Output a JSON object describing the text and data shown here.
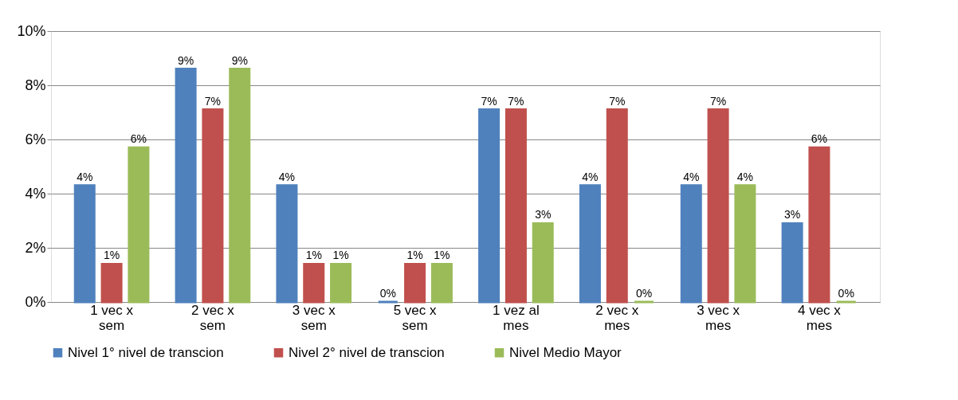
{
  "chart_data": {
    "type": "bar",
    "categories": [
      "1 vec x sem",
      "2 vec x sem",
      "3 vec x sem",
      "5 vec x sem",
      "1 vez al mes",
      "2 vec x mes",
      "3 vec x mes",
      "4 vec x mes"
    ],
    "series": [
      {
        "name": "Nivel 1° nivel de transcion",
        "color": "#4f81bd",
        "values": [
          4.3,
          8.6,
          4.3,
          0,
          7.1,
          4.3,
          4.3,
          2.9
        ],
        "value_labels": [
          "4%",
          "9%",
          "4%",
          "0%",
          "7%",
          "4%",
          "4%",
          "3%"
        ]
      },
      {
        "name": "Nivel 2° nivel de transcion",
        "color": "#c0504d",
        "values": [
          1.4,
          7.1,
          1.4,
          1.4,
          7.1,
          7.1,
          7.1,
          5.7
        ],
        "value_labels": [
          "1%",
          "7%",
          "1%",
          "1%",
          "7%",
          "7%",
          "7%",
          "6%"
        ]
      },
      {
        "name": "Nivel Medio Mayor",
        "color": "#9bbb59",
        "values": [
          5.7,
          8.6,
          1.4,
          1.4,
          2.9,
          0,
          4.3,
          0
        ],
        "value_labels": [
          "6%",
          "9%",
          "1%",
          "1%",
          "3%",
          "0%",
          "4%",
          "0%"
        ]
      }
    ],
    "ylim": [
      0,
      10
    ],
    "yticks": [
      {
        "value": 0,
        "label": "0%"
      },
      {
        "value": 2,
        "label": "2%"
      },
      {
        "value": 4,
        "label": "4%"
      },
      {
        "value": 6,
        "label": "6%"
      },
      {
        "value": 8,
        "label": "8%"
      },
      {
        "value": 10,
        "label": "10%"
      }
    ],
    "grid": "y",
    "legend": "bottom"
  }
}
